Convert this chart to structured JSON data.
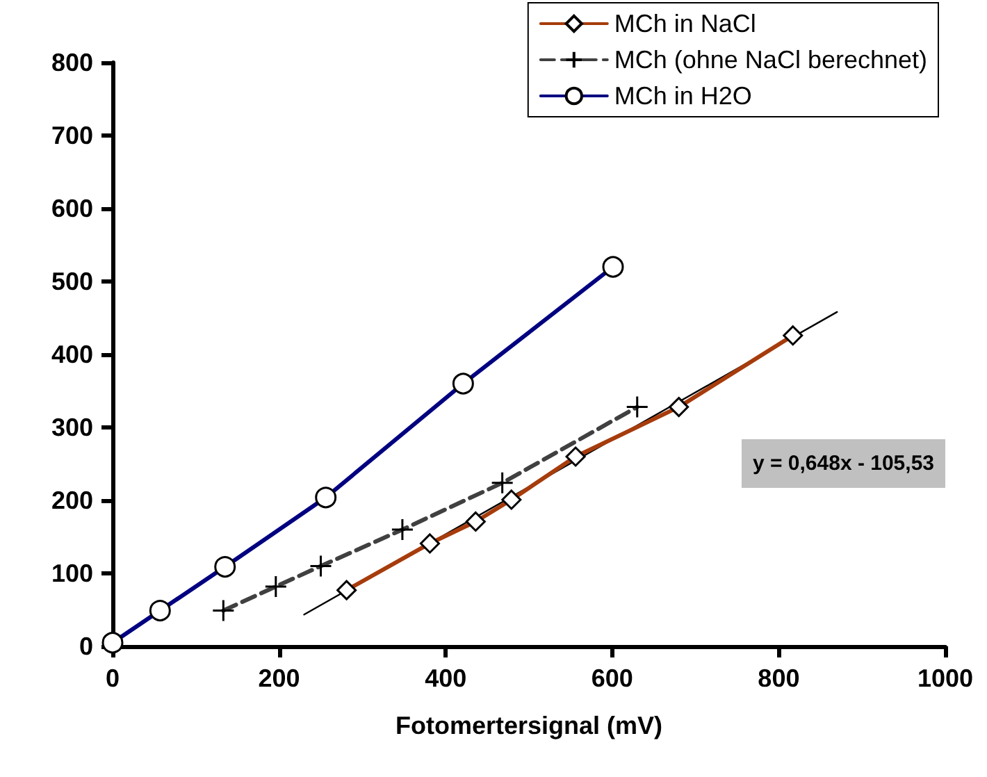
{
  "chart_data": {
    "type": "line",
    "xlabel": "Fotomertersignal (mV)",
    "xlim": [
      0,
      1000
    ],
    "xticks": [
      0,
      200,
      400,
      600,
      800,
      1000
    ],
    "ylim": [
      0,
      800
    ],
    "yticks": [
      0,
      100,
      200,
      300,
      400,
      500,
      600,
      700,
      800
    ],
    "grid": false,
    "legend": "top right",
    "series": [
      {
        "name": "MCh in NaCl",
        "color": "#a63c0c",
        "marker": "diamond",
        "line_style": "solid",
        "x": [
          281,
          381,
          436,
          479,
          556,
          680,
          817
        ],
        "values": [
          77,
          141,
          171,
          201,
          260,
          328,
          426
        ]
      },
      {
        "name": "MCh (ohne NaCl berechnet)",
        "color": "#404040",
        "marker": "cross",
        "line_style": "dashed",
        "x": [
          133,
          196,
          250,
          348,
          468,
          630
        ],
        "values": [
          49,
          82,
          110,
          160,
          224,
          328
        ]
      },
      {
        "name": "MCh in H2O",
        "color": "#000080",
        "marker": "circle",
        "line_style": "solid",
        "x": [
          0,
          57,
          135,
          256,
          421,
          601
        ],
        "values": [
          5,
          49,
          109,
          204,
          360,
          520
        ]
      },
      {
        "color": "#000000",
        "marker": "none",
        "line_style": "solid",
        "x": [
          230,
          870
        ],
        "values": [
          43.5,
          458.2
        ]
      }
    ],
    "annotations": [
      "y = 0,648x - 105,53"
    ]
  }
}
